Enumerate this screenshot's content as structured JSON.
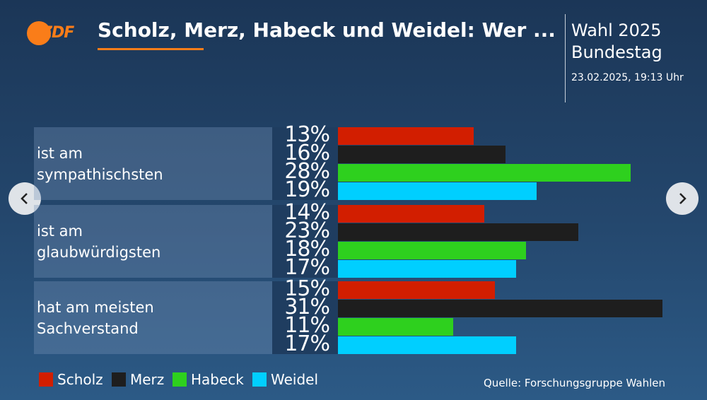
{
  "header": {
    "logo": "ZDF",
    "title": "Scholz, Merz, Habeck und Weidel: Wer ...",
    "election": "Wahl 2025",
    "election_sub": "Bundestag",
    "timestamp": "23.02.2025, 19:13 Uhr"
  },
  "chart_data": {
    "type": "bar",
    "orientation": "horizontal",
    "categories": [
      "ist am sympathischsten",
      "ist am glaubwürdigsten",
      "hat am meisten Sachverstand"
    ],
    "series": [
      {
        "name": "Scholz",
        "color": "#d21e00",
        "values": [
          13,
          14,
          15
        ],
        "value_labels": [
          "13%",
          "14%",
          "15%"
        ]
      },
      {
        "name": "Merz",
        "color": "#1e1e1e",
        "values": [
          16,
          23,
          31
        ],
        "value_labels": [
          "16%",
          "23%",
          "31%"
        ]
      },
      {
        "name": "Habeck",
        "color": "#2ed01e",
        "values": [
          28,
          18,
          11
        ],
        "value_labels": [
          "28%",
          "18%",
          "11%"
        ]
      },
      {
        "name": "Weidel",
        "color": "#00cfff",
        "values": [
          19,
          17,
          17
        ],
        "value_labels": [
          "19%",
          "17%",
          "17%"
        ]
      }
    ]
  },
  "source": "Quelle: Forschungsgruppe Wahlen"
}
